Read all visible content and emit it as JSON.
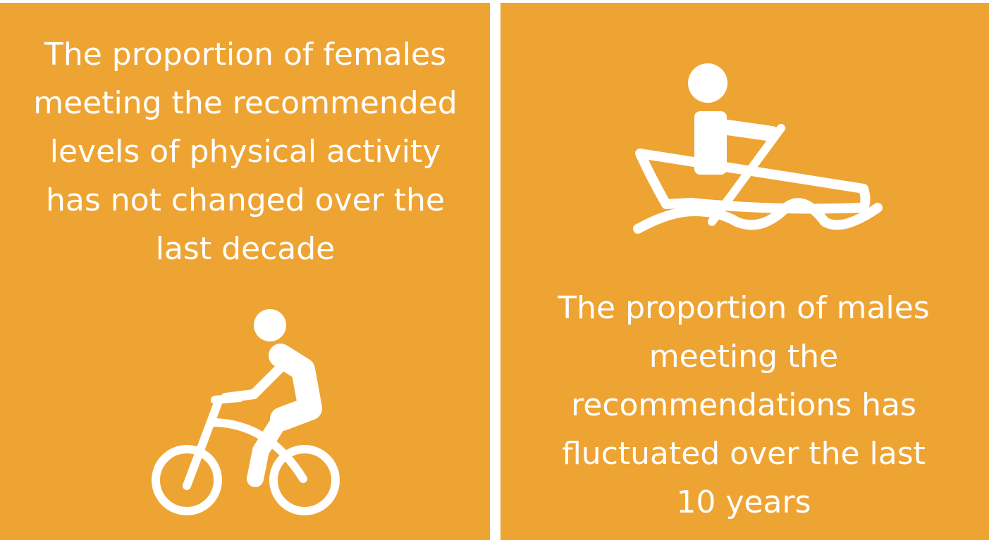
{
  "panels": [
    {
      "lines": [
        "The proportion of females",
        "meeting the recommended",
        "levels of physical activity",
        "has not changed over the",
        "last decade"
      ]
    },
    {
      "lines": [
        "The proportion of males",
        "meeting the",
        "recommendations has",
        "fluctuated over the last",
        "10 years"
      ]
    }
  ]
}
